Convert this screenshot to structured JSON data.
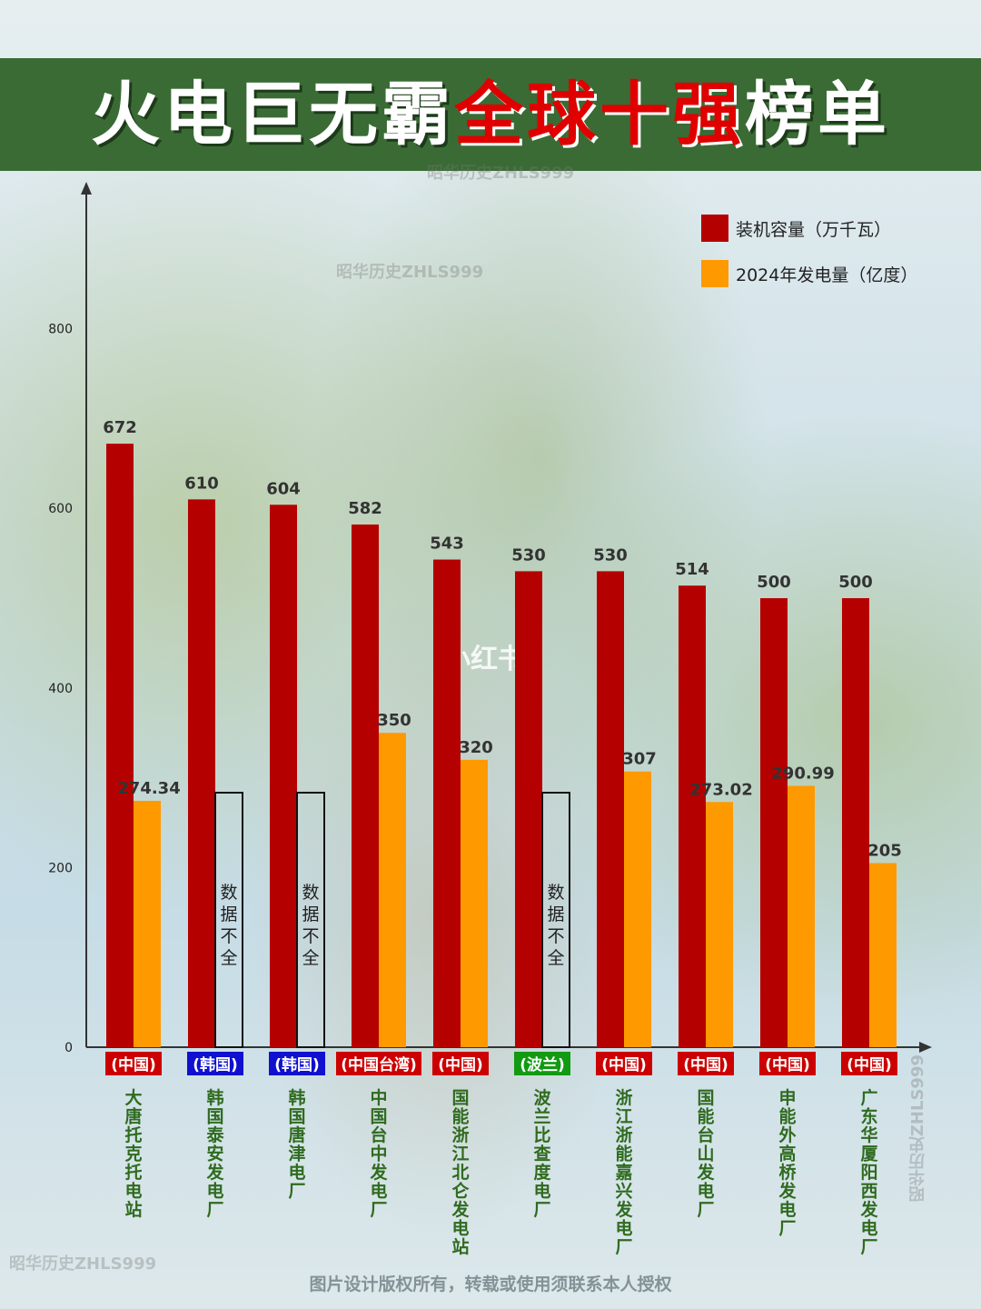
{
  "title": {
    "part1": "火电巨无霸",
    "part2": "全球十强",
    "part3": "榜单"
  },
  "watermarks": [
    "昭华历史ZHLS999",
    "昭华历史ZHLS999",
    "昭华历史ZHLS999",
    "昭华历史ZHLS999"
  ],
  "center_logo": "小红书",
  "footer": "图片设计版权所有，转载或使用须联系本人授权",
  "colors": {
    "capacity": "#b50000",
    "generation": "#ff9900",
    "china": "#cc0000",
    "korea": "#1010d0",
    "poland": "#129a12",
    "name": "#2f6b1f"
  },
  "chart_data": {
    "type": "bar",
    "ylim": [
      0,
      1000
    ],
    "yticks": [
      0,
      200,
      400,
      600,
      800
    ],
    "missing_label": "数据不全",
    "categories": [
      {
        "country": "(中国)",
        "name": "大唐托克托电站",
        "flag": "china"
      },
      {
        "country": "(韩国)",
        "name": "韩国泰安发电厂",
        "flag": "korea"
      },
      {
        "country": "(韩国)",
        "name": "韩国唐津电厂",
        "flag": "korea"
      },
      {
        "country": "(中国台湾)",
        "name": "中国台中发电厂",
        "flag": "china"
      },
      {
        "country": "(中国)",
        "name": "国能浙江北仑发电站",
        "flag": "china"
      },
      {
        "country": "(波兰)",
        "name": "波兰比查度电厂",
        "flag": "poland"
      },
      {
        "country": "(中国)",
        "name": "浙江浙能嘉兴发电厂",
        "flag": "china"
      },
      {
        "country": "(中国)",
        "name": "国能台山发电厂",
        "flag": "china"
      },
      {
        "country": "(中国)",
        "name": "申能外高桥发电厂",
        "flag": "china"
      },
      {
        "country": "(中国)",
        "name": "广东华厦阳西发电厂",
        "flag": "china"
      }
    ],
    "series": [
      {
        "name": "装机容量（万千瓦）",
        "values": [
          672,
          610,
          604,
          582,
          543,
          530,
          530,
          514,
          500,
          500
        ],
        "labels": [
          "672",
          "610",
          "604",
          "582",
          "543",
          "530",
          "530",
          "514",
          "500",
          "500"
        ]
      },
      {
        "name": "2024年发电量（亿度）",
        "values": [
          274.34,
          null,
          null,
          350,
          320,
          null,
          307,
          273.02,
          290.99,
          205
        ],
        "labels": [
          "274.34",
          "",
          "",
          "350",
          "320",
          "",
          "307",
          "273.02",
          "290.99",
          "205"
        ]
      }
    ]
  }
}
